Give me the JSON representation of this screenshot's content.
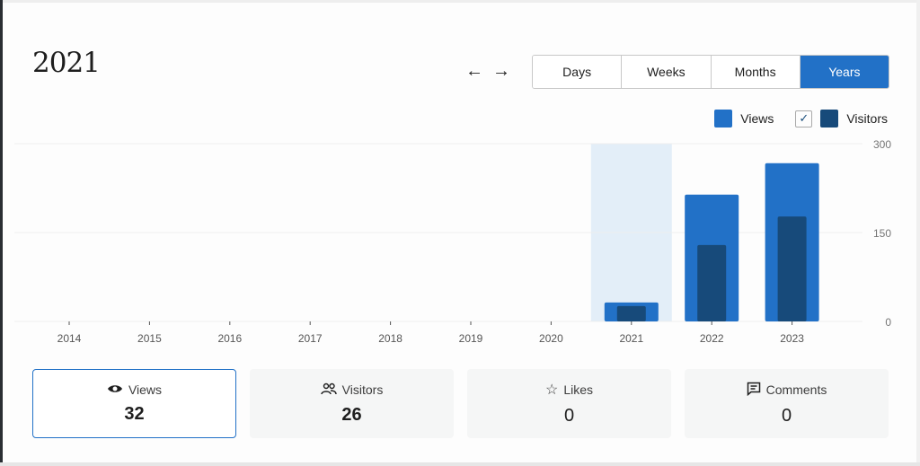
{
  "header": {
    "title": "2021",
    "prev_label": "←",
    "next_label": "→"
  },
  "periods": [
    {
      "label": "Days",
      "active": false
    },
    {
      "label": "Weeks",
      "active": false
    },
    {
      "label": "Months",
      "active": false
    },
    {
      "label": "Years",
      "active": true
    }
  ],
  "legend": {
    "views": "Views",
    "visitors": "Visitors",
    "visitors_checked": true
  },
  "colors": {
    "views": "#2271c7",
    "visitors": "#174a7a",
    "highlight": "#e3eef8",
    "accent": "#2271c7"
  },
  "chart_data": {
    "type": "bar",
    "categories": [
      "2014",
      "2015",
      "2016",
      "2017",
      "2018",
      "2019",
      "2020",
      "2021",
      "2022",
      "2023"
    ],
    "series": [
      {
        "name": "Views",
        "values": [
          0,
          0,
          0,
          0,
          0,
          0,
          0,
          32,
          214,
          267
        ]
      },
      {
        "name": "Visitors",
        "values": [
          0,
          0,
          0,
          0,
          0,
          0,
          0,
          26,
          129,
          177
        ]
      }
    ],
    "ylim": [
      0,
      300
    ],
    "yticks": [
      "0",
      "150",
      "300"
    ],
    "highlighted": "2021",
    "grid": true,
    "legend": "top-right"
  },
  "stats": [
    {
      "label": "Views",
      "value": "32",
      "icon": "eye-icon",
      "active": true
    },
    {
      "label": "Visitors",
      "value": "26",
      "icon": "people-icon",
      "active": false
    },
    {
      "label": "Likes",
      "value": "0",
      "icon": "star-icon",
      "active": false
    },
    {
      "label": "Comments",
      "value": "0",
      "icon": "comment-icon",
      "active": false
    }
  ]
}
